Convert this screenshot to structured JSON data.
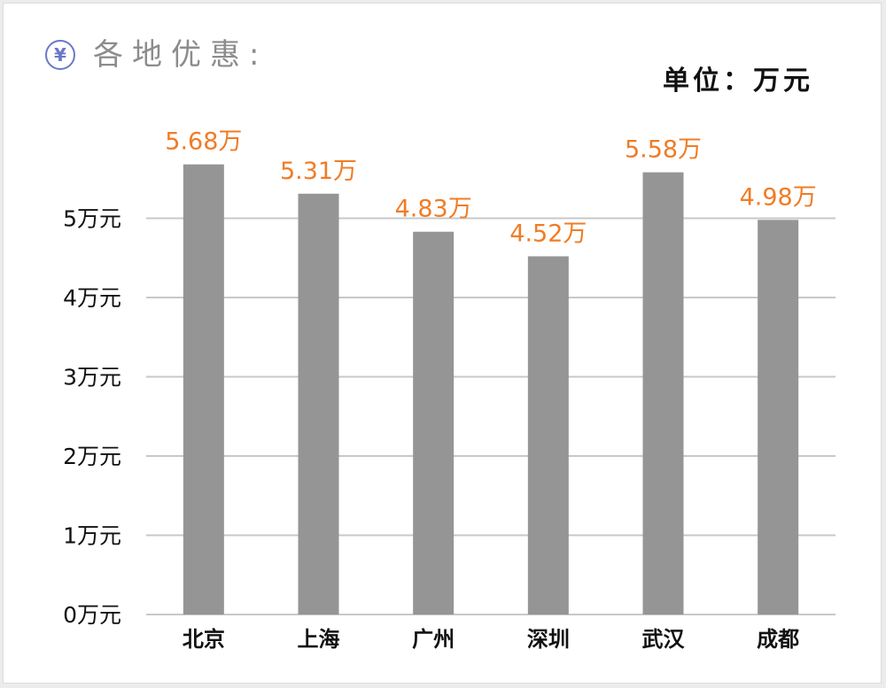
{
  "header": {
    "icon": "yen-icon",
    "icon_glyph": "¥",
    "title": "各地优惠:",
    "unit_label": "单位：万元"
  },
  "colors": {
    "bar": "#959595",
    "data_label": "#f07c26",
    "grid": "#c8c8c8",
    "icon": "#6a78c8"
  },
  "chart_data": {
    "type": "bar",
    "title": "各地优惠:",
    "unit": "单位：万元",
    "categories": [
      "北京",
      "上海",
      "广州",
      "深圳",
      "武汉",
      "成都"
    ],
    "values": [
      5.68,
      5.31,
      4.83,
      4.52,
      5.58,
      4.98
    ],
    "data_labels": [
      "5.68万",
      "5.31万",
      "4.83万",
      "4.52万",
      "5.58万",
      "4.98万"
    ],
    "y_ticks": [
      0,
      1,
      2,
      3,
      4,
      5
    ],
    "y_tick_labels": [
      "0万元",
      "1万元",
      "2万元",
      "3万元",
      "4万元",
      "5万元"
    ],
    "ylim": [
      0,
      5
    ],
    "grid": true,
    "legend": "none"
  }
}
